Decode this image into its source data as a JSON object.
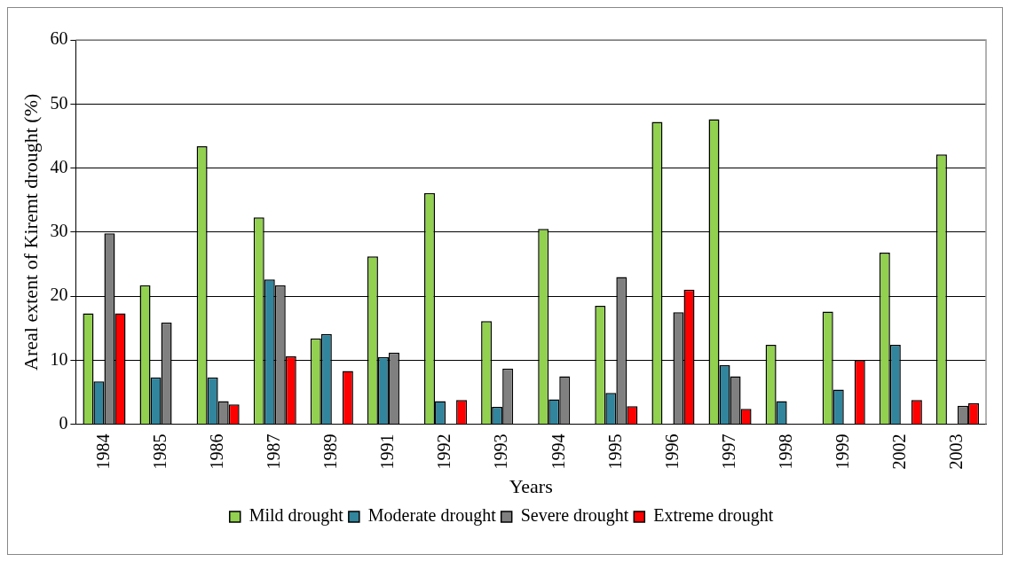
{
  "chart_data": {
    "type": "bar",
    "xlabel": "Years",
    "ylabel": "Areal extent of Kiremt drought (%)",
    "categories": [
      "1984",
      "1985",
      "1986",
      "1987",
      "1989",
      "1991",
      "1992",
      "1993",
      "1994",
      "1995",
      "1996",
      "1997",
      "1998",
      "1999",
      "2002",
      "2003"
    ],
    "series": [
      {
        "name": "Mild drought",
        "color": "#92d050",
        "values": [
          17.3,
          21.7,
          43.4,
          32.3,
          13.4,
          26.2,
          36.1,
          16.1,
          30.5,
          18.5,
          47.2,
          47.6,
          12.4,
          17.6,
          26.8,
          42.1
        ]
      },
      {
        "name": "Moderate drought",
        "color": "#31859c",
        "values": [
          6.7,
          7.3,
          7.3,
          22.6,
          14.1,
          10.5,
          3.6,
          2.7,
          3.9,
          4.9,
          null,
          9.2,
          3.6,
          5.4,
          12.4,
          null
        ]
      },
      {
        "name": "Severe drought",
        "color": "#808080",
        "values": [
          29.8,
          15.9,
          3.6,
          21.7,
          null,
          11.2,
          null,
          8.7,
          7.5,
          23.0,
          17.5,
          7.5,
          null,
          null,
          null,
          2.9
        ]
      },
      {
        "name": "Extreme drought",
        "color": "#ff0000",
        "values": [
          17.3,
          null,
          3.1,
          10.6,
          8.3,
          null,
          3.8,
          null,
          null,
          2.8,
          21.0,
          2.4,
          null,
          10.0,
          3.8,
          3.3
        ]
      }
    ],
    "ylim": [
      0,
      60
    ],
    "yticks": [
      0,
      10,
      20,
      30,
      40,
      50,
      60
    ],
    "grid": "y",
    "legend": "bottom"
  }
}
